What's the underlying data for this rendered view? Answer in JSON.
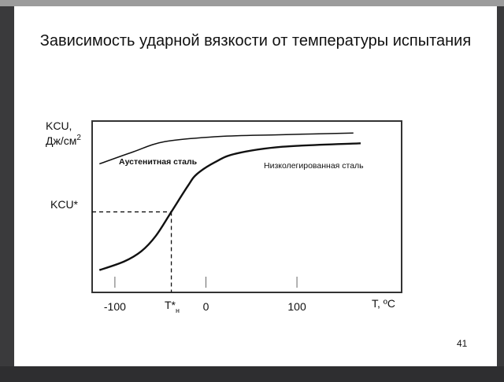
{
  "slide": {
    "title": "Зависимость ударной вязкости от температуры испытания",
    "page_number": "41"
  },
  "chart_data": {
    "type": "line",
    "title": "Зависимость ударной вязкости от температуры испытания",
    "xlabel": "T, ºC",
    "ylabel_line1": "KCU,",
    "ylabel_line2": "Дж/см",
    "ylabel_sup": "2",
    "x_ticks": [
      -100,
      0,
      100
    ],
    "x_tick_labels": [
      "-100",
      "0",
      "100"
    ],
    "xlim": [
      -125,
      215
    ],
    "ylim": [
      0,
      100
    ],
    "grid": false,
    "series": [
      {
        "name": "Аустенитная сталь",
        "x": [
          -117,
          -80,
          -45,
          15,
          80,
          162
        ],
        "y": [
          75,
          82,
          88,
          91,
          92,
          93
        ]
      },
      {
        "name": "Низколегированная сталь",
        "x": [
          -117,
          -90,
          -71,
          -55,
          -38,
          -20,
          -10,
          10,
          33,
          84,
          170
        ],
        "y": [
          13,
          18,
          24,
          33,
          47,
          62,
          69,
          76,
          81,
          85,
          87
        ]
      }
    ],
    "marker": {
      "x_label": "T*",
      "x_label_sub": "н",
      "x_value": -38,
      "y_label": "KCU*",
      "y_value": 47
    }
  }
}
